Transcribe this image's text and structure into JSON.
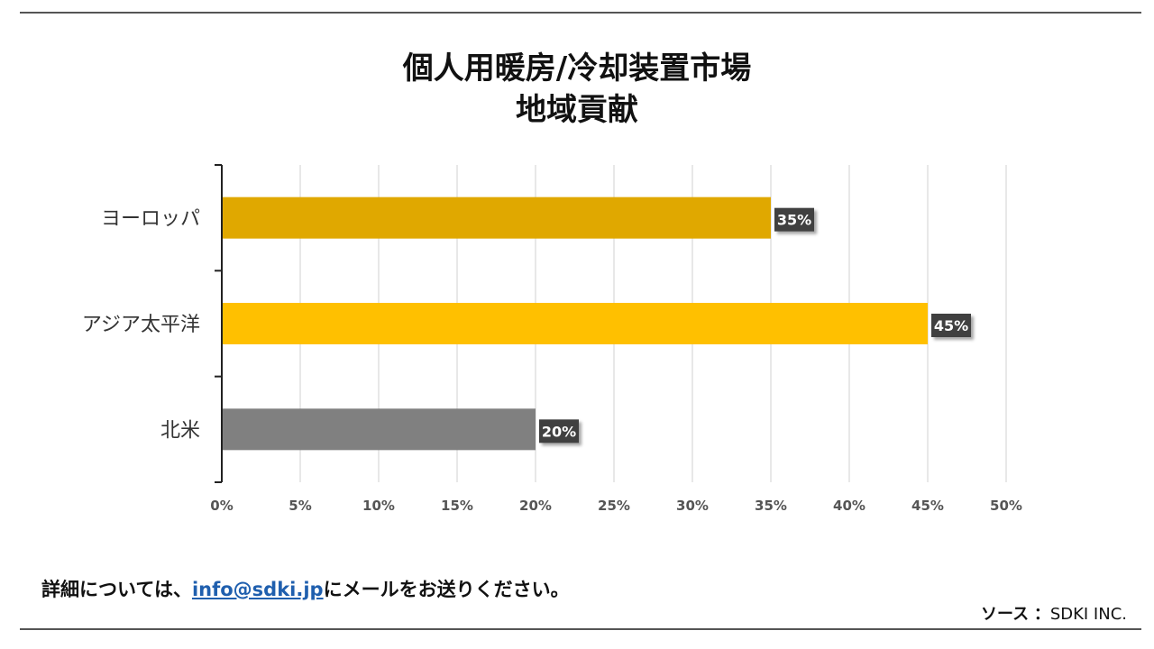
{
  "chart_data": {
    "type": "bar",
    "orientation": "horizontal",
    "title": [
      "個人用暖房/冷却装置市場",
      "地域貢献"
    ],
    "categories": [
      "ヨーロッパ",
      "アジア太平洋",
      "北米"
    ],
    "values": [
      35,
      45,
      20
    ],
    "value_labels": [
      "35%",
      "45%",
      "20%"
    ],
    "colors": [
      "#e0a800",
      "#ffc000",
      "#808080"
    ],
    "xlim": [
      0,
      50
    ],
    "xticks": [
      0,
      5,
      10,
      15,
      20,
      25,
      30,
      35,
      40,
      45,
      50
    ],
    "xtick_labels": [
      "0%",
      "5%",
      "10%",
      "15%",
      "20%",
      "25%",
      "30%",
      "35%",
      "40%",
      "45%",
      "50%"
    ],
    "grid": true,
    "legend": "none"
  },
  "footer": {
    "note_prefix": "詳細については、",
    "email": "info@sdki.jp",
    "note_suffix": "にメールをお送りください。"
  },
  "source": {
    "label": "ソース",
    "sep": "：",
    "value": "SDKI INC."
  }
}
